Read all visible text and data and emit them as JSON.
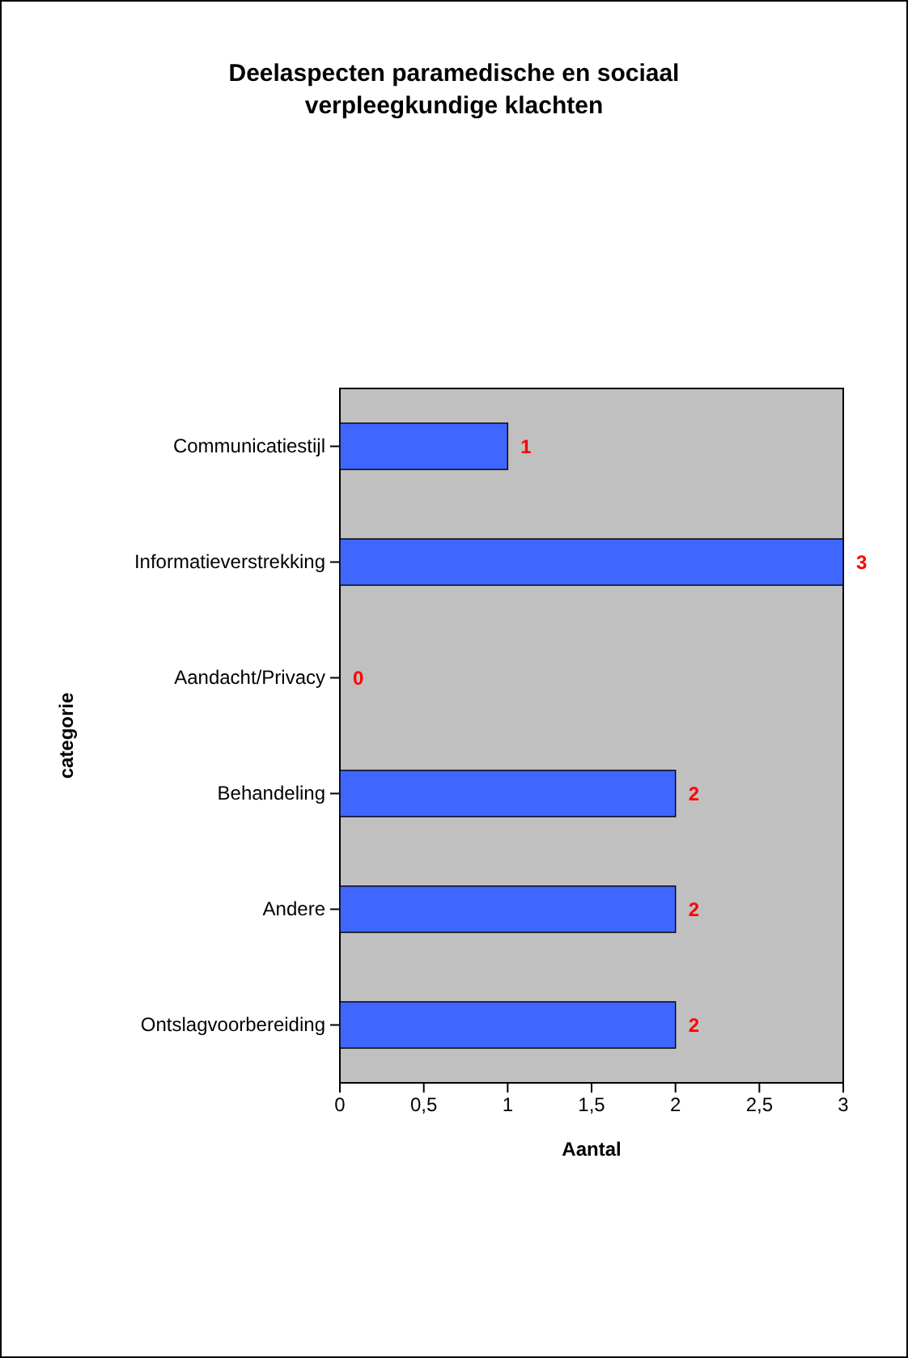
{
  "chart_data": {
    "type": "bar",
    "orientation": "horizontal",
    "title": "Deelaspecten paramedische en sociaal verpleegkundige klachten",
    "xlabel": "Aantal",
    "ylabel": "categorie",
    "categories": [
      "Communicatiestijl",
      "Informatieverstrekking",
      "Aandacht/Privacy",
      "Behandeling",
      "Andere",
      "Ontslagvoorbereiding"
    ],
    "values": [
      1,
      3,
      0,
      2,
      2,
      2
    ],
    "color": "#3f66ff",
    "data_labels": true,
    "xlim": [
      0,
      3
    ],
    "xticks": [
      0,
      {
        "value": 0.5,
        "label": "0,5"
      },
      1,
      {
        "value": 1.5,
        "label": "1,5"
      },
      2,
      {
        "value": 2.5,
        "label": "2,5"
      },
      3
    ]
  }
}
